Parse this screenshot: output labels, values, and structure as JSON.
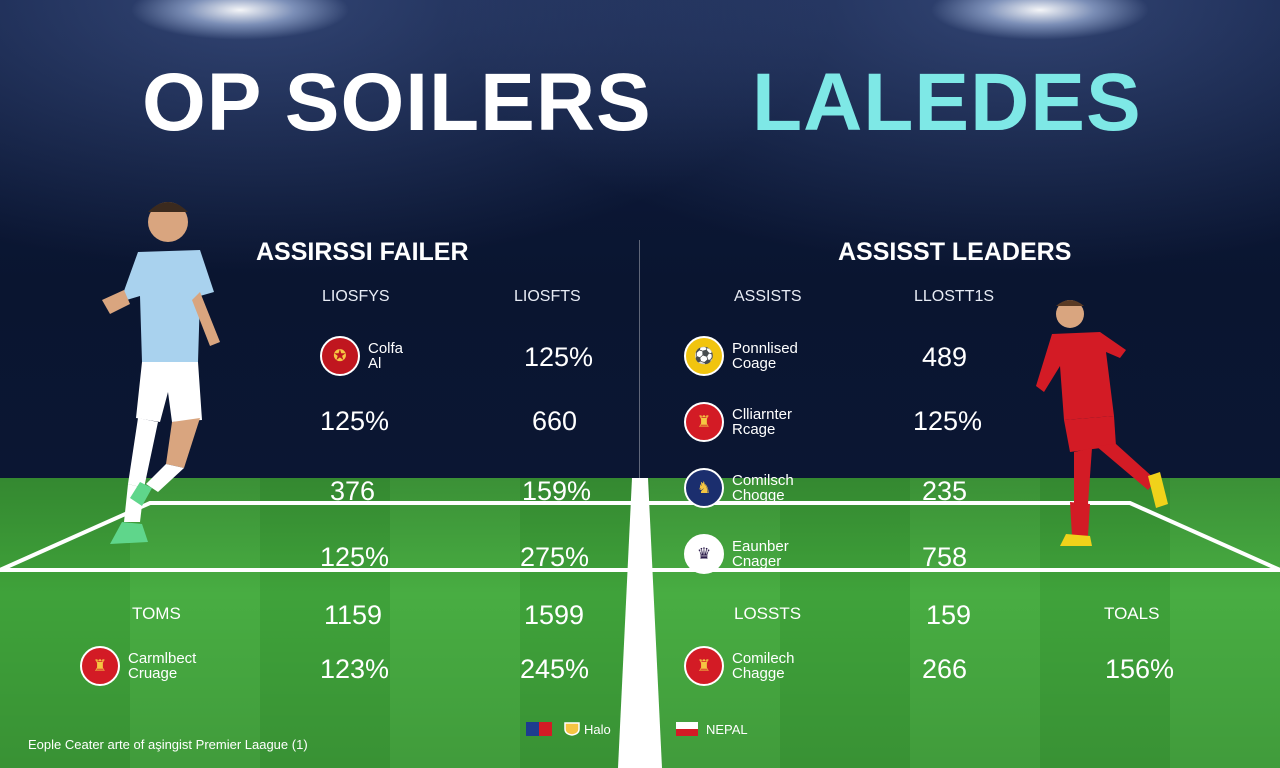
{
  "titles": {
    "left": "OP SOILERS",
    "right": "LALEDES"
  },
  "left_panel": {
    "section_title": "ASSIRSSI FAILER",
    "col1_header": "LIOSFYS",
    "col2_header": "LIOSFTS",
    "team1": {
      "line1": "Colfa",
      "line2": "Al"
    },
    "row1_col2": "125%",
    "row2_col1": "125%",
    "row2_col2": "660",
    "row3_col1": "376",
    "row3_col2": "159%",
    "row4_col1": "125%",
    "row4_col2": "275%"
  },
  "right_panel": {
    "section_title": "ASSISST LEADERS",
    "col1_header": "ASSISTS",
    "col2_header": "LLOSTT1S",
    "teams": [
      {
        "line1": "Ponnlised",
        "line2": "Coage",
        "value": "489"
      },
      {
        "line1": "Clliarnter",
        "line2": "Rcage",
        "value": "125%"
      },
      {
        "line1": "Comilsch",
        "line2": "Chogge",
        "value": "235"
      },
      {
        "line1": "Eaunber",
        "line2": "Cnager",
        "value": "758"
      }
    ]
  },
  "bottom": {
    "left_label": "TOMS",
    "row1": {
      "left_a": "1159",
      "left_b": "1599",
      "label_c": "LOSSTS",
      "right_a": "159",
      "right_label": "TOALS"
    },
    "team_left": {
      "line1": "Carmlbect",
      "line2": "Cruage"
    },
    "row2": {
      "left_a": "123%",
      "left_b": "245%"
    },
    "team_right": {
      "line1": "Comilech",
      "line2": "Chagge"
    },
    "row2_right": {
      "right_a": "266",
      "right_b": "156%"
    }
  },
  "footer": {
    "caption": "Eople Ceater arte of aşingist Premier Laague (1)",
    "flag_label_1": "Halo",
    "flag_label_2": "NEPAL"
  },
  "colors": {
    "sky": "#0b1433",
    "pitch": "#3fa23a",
    "title_right": "#7ee8e6",
    "city_kit": "#a9d2ee",
    "united_kit": "#d31b25"
  }
}
